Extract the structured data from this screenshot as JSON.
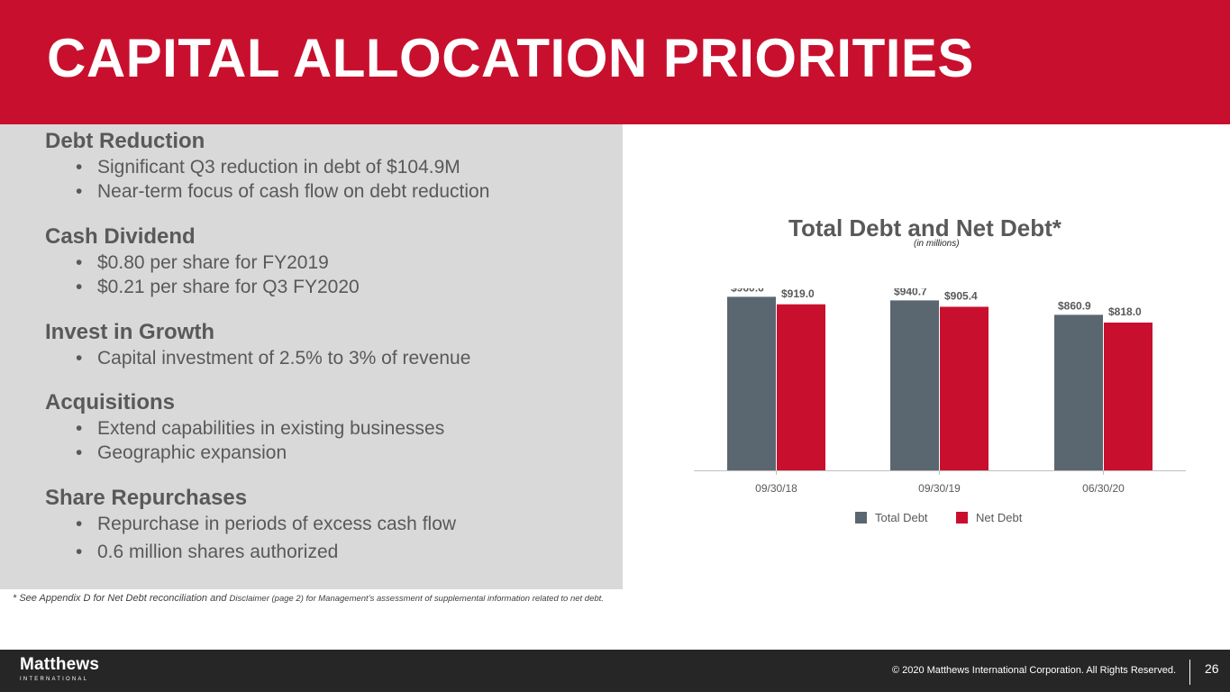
{
  "header": {
    "title": "CAPITAL ALLOCATION PRIORITIES"
  },
  "sections": [
    {
      "heading": "Debt Reduction",
      "bullets": [
        "Significant Q3 reduction in debt of $104.9M",
        "Near-term focus of cash flow on debt reduction"
      ]
    },
    {
      "heading": "Cash Dividend",
      "bullets": [
        "$0.80 per share for FY2019",
        "$0.21 per share for Q3 FY2020"
      ]
    },
    {
      "heading": "Invest in Growth",
      "bullets": [
        "Capital investment of 2.5% to 3% of revenue"
      ]
    },
    {
      "heading": "Acquisitions",
      "bullets": [
        "Extend capabilities in existing businesses",
        "Geographic expansion"
      ]
    },
    {
      "heading": "Share Repurchases",
      "bullets": [
        "Repurchase in periods of excess cash flow",
        "0.6 million shares authorized"
      ]
    }
  ],
  "bullet_glyph": "•",
  "footnote": {
    "main": "* See Appendix D for Net Debt reconciliation and ",
    "small": "Disclaimer (page 2) for Management’s assessment of supplemental information related to net debt."
  },
  "chart_data": {
    "type": "bar",
    "title": "Total Debt and Net Debt*",
    "subtitle": "(in millions)",
    "categories": [
      "09/30/18",
      "09/30/19",
      "06/30/20"
    ],
    "series": [
      {
        "name": "Total Debt",
        "values": [
          960.6,
          940.7,
          860.9
        ],
        "labels": [
          "$960.6",
          "$940.7",
          "$860.9"
        ],
        "color": "#5b6770"
      },
      {
        "name": "Net Debt",
        "values": [
          919.0,
          905.4,
          818.0
        ],
        "labels": [
          "$919.0",
          "$905.4",
          "$818.0"
        ],
        "color": "#c8102e"
      }
    ],
    "legend_position": "bottom",
    "grid": false
  },
  "footer": {
    "logo": "Matthews",
    "logo_sub": "INTERNATIONAL",
    "copyright": "© 2020 Matthews International Corporation. All Rights Reserved.",
    "page_number": "26"
  },
  "colors": {
    "brand_red": "#c8102e",
    "panel_gray": "#d9d9d9",
    "footer_dark": "#262626",
    "bar_gray": "#5b6770"
  }
}
